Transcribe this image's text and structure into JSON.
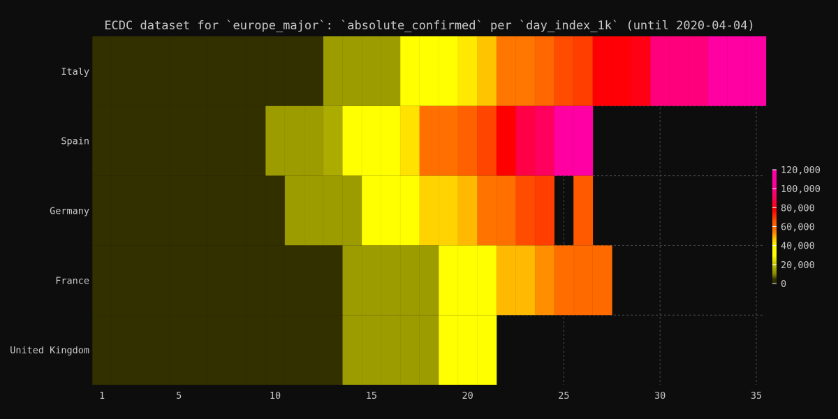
{
  "chart_data": {
    "type": "heatmap",
    "title": "ECDC dataset for `europe_major`: `absolute_confirmed` per `day_index_1k` (until 2020-04-04)",
    "xlabel": "",
    "ylabel": "",
    "x_ticks": [
      1,
      5,
      10,
      15,
      20,
      25,
      30,
      35
    ],
    "xlim": [
      0.6,
      35.4
    ],
    "rows": [
      "Italy",
      "Spain",
      "Germany",
      "France",
      "United Kingdom"
    ],
    "cells": [
      [
        [
          1,
          12,
          1200
        ],
        [
          13,
          14,
          14000
        ],
        [
          15,
          16,
          14000
        ],
        [
          17,
          17,
          32000
        ],
        [
          18,
          19,
          35000
        ],
        [
          20,
          20,
          43000
        ],
        [
          21,
          21,
          48000
        ],
        [
          22,
          23,
          56000
        ],
        [
          24,
          24,
          61000
        ],
        [
          25,
          25,
          67000
        ],
        [
          26,
          26,
          69000
        ],
        [
          27,
          28,
          79000
        ],
        [
          29,
          29,
          81000
        ],
        [
          30,
          32,
          98000
        ],
        [
          33,
          34,
          108000
        ],
        [
          35,
          35,
          115000
        ]
      ],
      [
        [
          1,
          9,
          1200
        ],
        [
          10,
          10,
          14000
        ],
        [
          11,
          12,
          14000
        ],
        [
          13,
          13,
          17000
        ],
        [
          14,
          14,
          36000
        ],
        [
          15,
          16,
          38000
        ],
        [
          17,
          17,
          44000
        ],
        [
          18,
          19,
          58000
        ],
        [
          20,
          20,
          63000
        ],
        [
          21,
          21,
          68000
        ],
        [
          22,
          22,
          78000
        ],
        [
          23,
          23,
          88000
        ],
        [
          24,
          24,
          92000
        ],
        [
          25,
          25,
          107000
        ],
        [
          26,
          26,
          112000
        ]
      ],
      [
        [
          1,
          10,
          1200
        ],
        [
          11,
          12,
          14000
        ],
        [
          13,
          14,
          14000
        ],
        [
          15,
          16,
          37000
        ],
        [
          17,
          17,
          38000
        ],
        [
          18,
          19,
          46000
        ],
        [
          20,
          20,
          49000
        ],
        [
          21,
          21,
          57000
        ],
        [
          22,
          22,
          58000
        ],
        [
          23,
          23,
          67000
        ],
        [
          24,
          24,
          69000
        ],
        [
          26,
          26,
          65000
        ]
      ],
      [
        [
          1,
          13,
          1200
        ],
        [
          14,
          14,
          14000
        ],
        [
          15,
          16,
          14000
        ],
        [
          17,
          18,
          14000
        ],
        [
          19,
          19,
          38000
        ],
        [
          20,
          21,
          38000
        ],
        [
          22,
          23,
          49000
        ],
        [
          24,
          24,
          53000
        ],
        [
          25,
          25,
          59000
        ],
        [
          26,
          27,
          60000
        ]
      ],
      [
        [
          1,
          13,
          1200
        ],
        [
          14,
          14,
          14000
        ],
        [
          15,
          16,
          14000
        ],
        [
          17,
          18,
          14000
        ],
        [
          19,
          19,
          38000
        ],
        [
          20,
          21,
          38000
        ]
      ]
    ],
    "colorbar": {
      "ticks": [
        "0",
        "20,000",
        "40,000",
        "60,000",
        "80,000",
        "100,000",
        "120,000"
      ],
      "min": 0,
      "max": 120000
    },
    "colors": {
      "background": "#0d0d0d",
      "text": "#c9c9c9",
      "grid": "#4a4a4a"
    },
    "grid": true
  }
}
